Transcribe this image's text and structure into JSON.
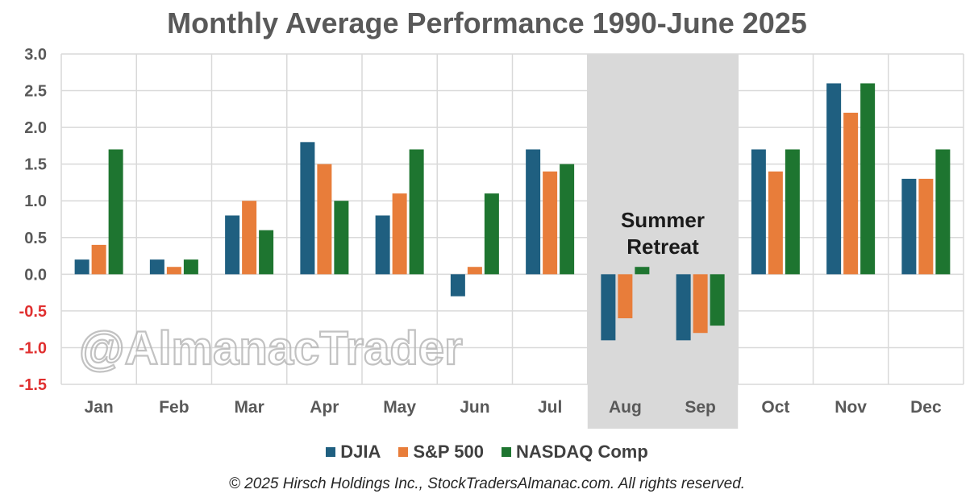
{
  "chart_data": {
    "type": "bar",
    "title": "Monthly Average Performance 1990-June 2025",
    "categories": [
      "Jan",
      "Feb",
      "Mar",
      "Apr",
      "May",
      "Jun",
      "Jul",
      "Aug",
      "Sep",
      "Oct",
      "Nov",
      "Dec"
    ],
    "series": [
      {
        "name": "DJIA",
        "color": "#1f5f80",
        "values": [
          0.2,
          0.2,
          0.8,
          1.8,
          0.8,
          -0.3,
          1.7,
          -0.9,
          -0.9,
          1.7,
          2.6,
          1.3
        ]
      },
      {
        "name": "S&P 500",
        "color": "#e87d3a",
        "values": [
          0.4,
          0.1,
          1.0,
          1.5,
          1.1,
          0.1,
          1.4,
          -0.6,
          -0.8,
          1.4,
          2.2,
          1.3
        ]
      },
      {
        "name": "NASDAQ Comp",
        "color": "#1e7530",
        "values": [
          1.7,
          0.2,
          0.6,
          1.0,
          1.7,
          1.1,
          1.5,
          0.1,
          -0.7,
          1.7,
          2.6,
          1.7
        ]
      }
    ],
    "ylim": [
      -1.5,
      3.0
    ],
    "yticks": [
      "3.0",
      "2.5",
      "2.0",
      "1.5",
      "1.0",
      "0.5",
      "0.0",
      "-0.5",
      "-1.0",
      "-1.5"
    ],
    "negative_tick_color": "#e03030",
    "highlight_months": [
      "Aug",
      "Sep"
    ],
    "annotation": "Summer\nRetreat",
    "watermark": "@AlmanacTrader",
    "grid": true,
    "legend_position": "bottom"
  },
  "footer": {
    "copyright": "© 2025 Hirsch Holdings Inc., StockTradersAlmanac.com. All rights reserved."
  }
}
